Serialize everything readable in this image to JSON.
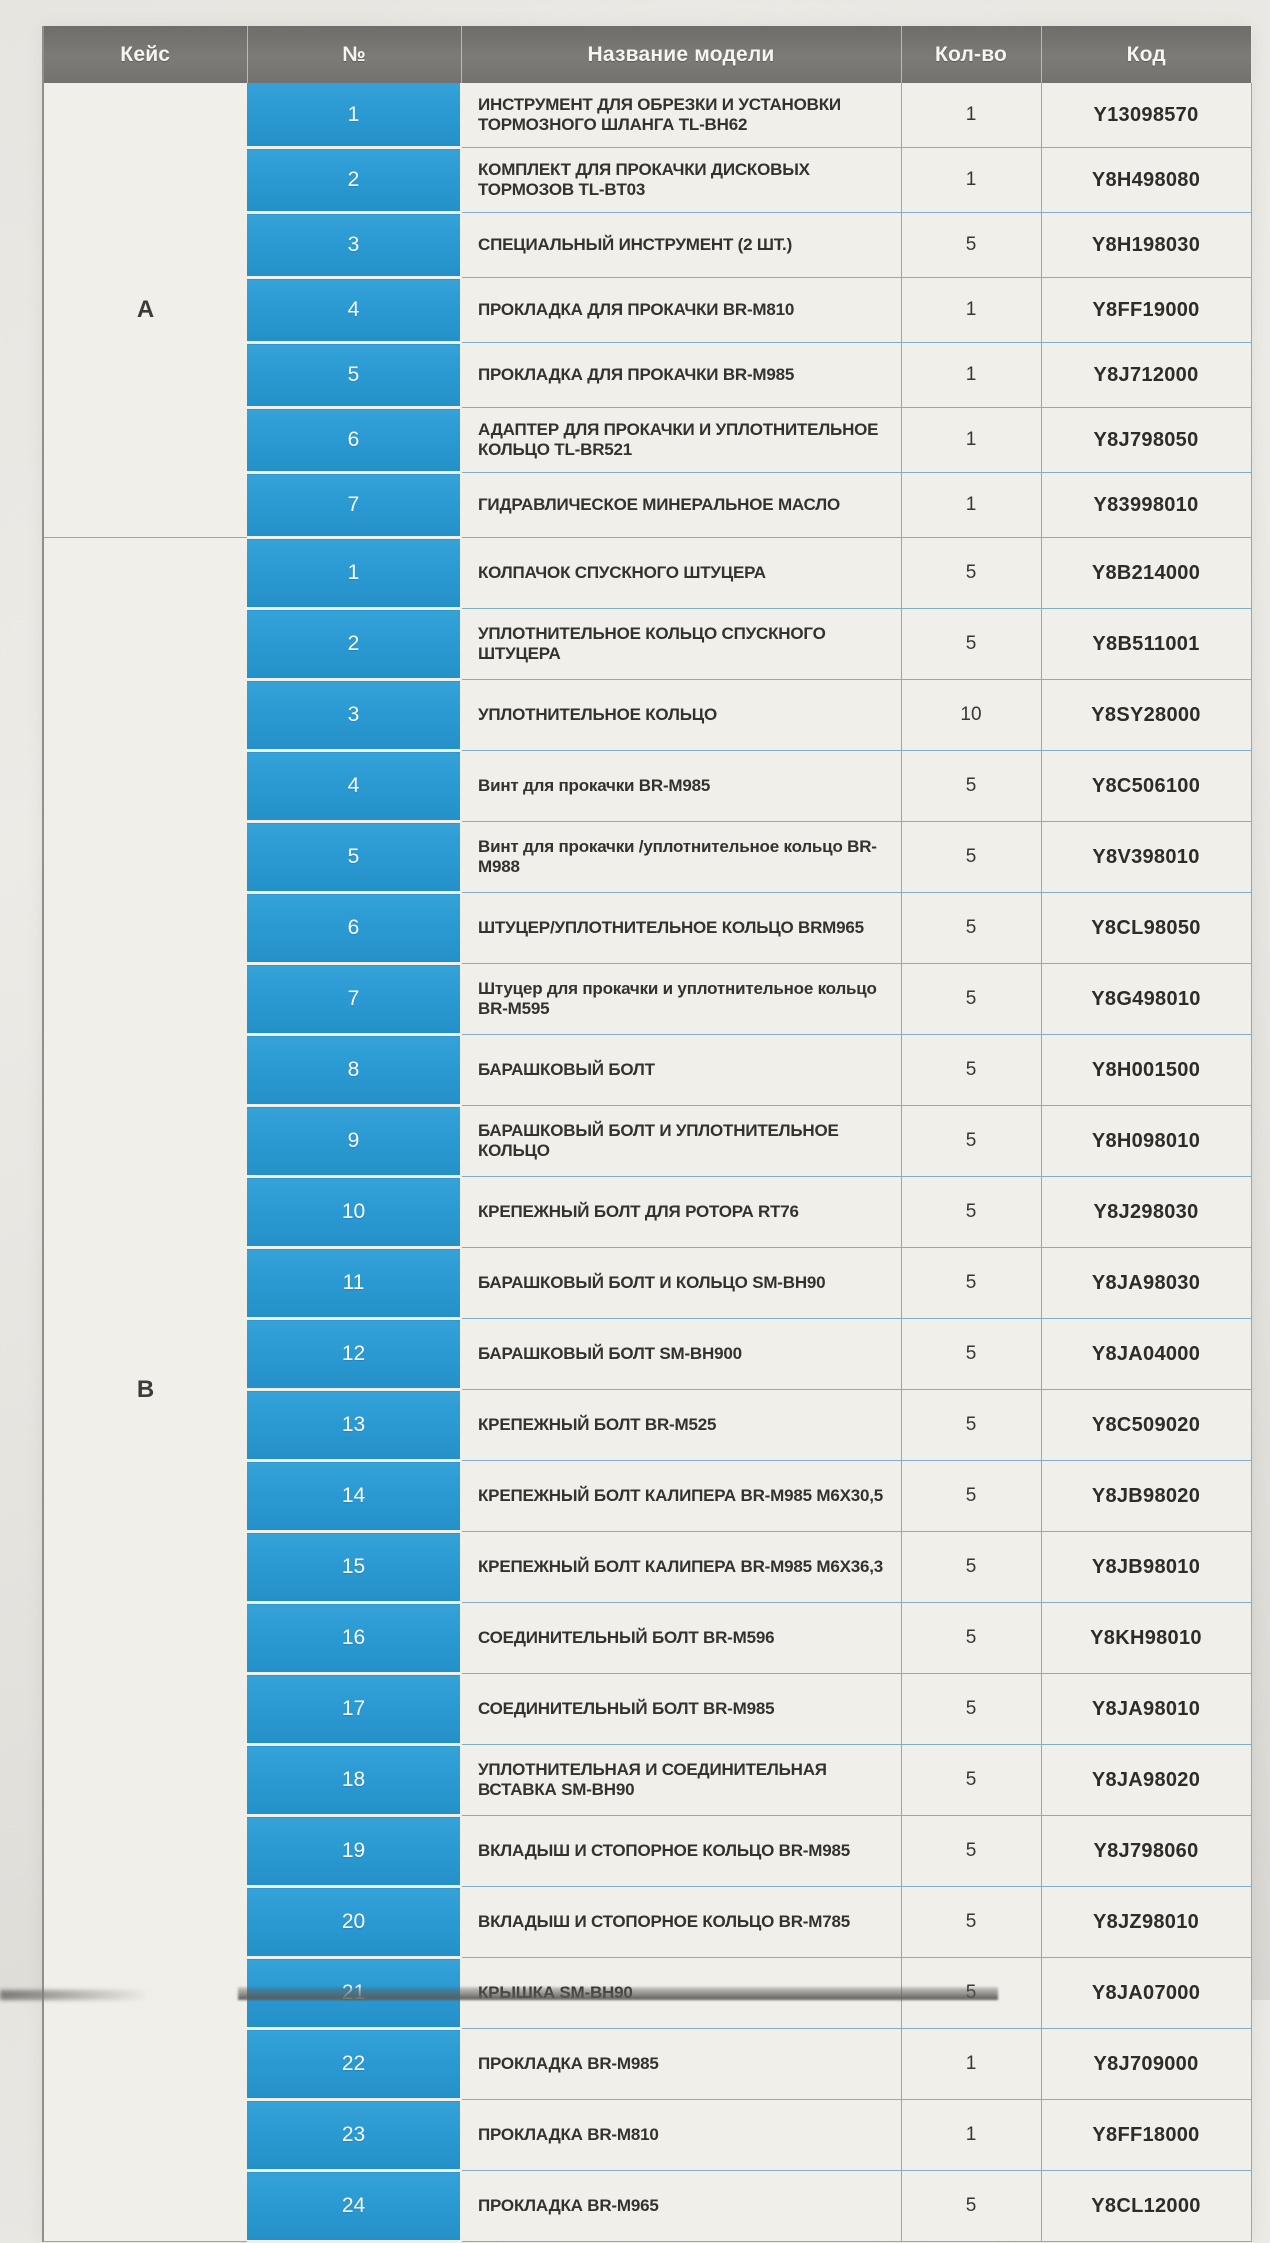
{
  "colors": {
    "accent_blue": "#2b9ad3",
    "header_gray": "#787672",
    "paper": "#f1efe9",
    "grid_blue": "#84abc7",
    "ink": "#34322f"
  },
  "header": {
    "case": "Кейс",
    "num": "№",
    "name": "Название модели",
    "qty": "Кол-во",
    "code": "Код"
  },
  "sections": [
    {
      "case": "A",
      "rows": [
        {
          "num": "1",
          "name": "ИНСТРУМЕНТ ДЛЯ ОБРЕЗКИ И УСТАНОВКИ ТОРМОЗНОГО ШЛАНГА TL-BH62",
          "qty": "1",
          "code": "Y13098570"
        },
        {
          "num": "2",
          "name": "КОМПЛЕКТ ДЛЯ ПРОКАЧКИ ДИСКОВЫХ ТОРМОЗОВ TL-BT03",
          "qty": "1",
          "code": "Y8H498080"
        },
        {
          "num": "3",
          "name": "СПЕЦИАЛЬНЫЙ ИНСТРУМЕНТ (2 ШТ.)",
          "qty": "5",
          "code": "Y8H198030"
        },
        {
          "num": "4",
          "name": "ПРОКЛАДКА ДЛЯ ПРОКАЧКИ BR-M810",
          "qty": "1",
          "code": "Y8FF19000"
        },
        {
          "num": "5",
          "name": "ПРОКЛАДКА ДЛЯ ПРОКАЧКИ BR-M985",
          "qty": "1",
          "code": "Y8J712000"
        },
        {
          "num": "6",
          "name": "АДАПТЕР ДЛЯ ПРОКАЧКИ И УПЛОТНИТЕЛЬНОЕ КОЛЬЦО TL-BR521",
          "qty": "1",
          "code": "Y8J798050"
        },
        {
          "num": "7",
          "name": "ГИДРАВЛИЧЕСКОЕ МИНЕРАЛЬНОЕ МАСЛО",
          "qty": "1",
          "code": "Y83998010"
        }
      ]
    },
    {
      "case": "B",
      "rows": [
        {
          "num": "1",
          "name": "КОЛПАЧОК СПУСКНОГО ШТУЦЕРА",
          "qty": "5",
          "code": "Y8B214000"
        },
        {
          "num": "2",
          "name": "УПЛОТНИТЕЛЬНОЕ КОЛЬЦО СПУСКНОГО ШТУЦЕРА",
          "qty": "5",
          "code": "Y8B511001"
        },
        {
          "num": "3",
          "name": "УПЛОТНИТЕЛЬНОЕ КОЛЬЦО",
          "qty": "10",
          "code": "Y8SY28000"
        },
        {
          "num": "4",
          "name": "Винт для прокачки BR-M985",
          "qty": "5",
          "code": "Y8C506100"
        },
        {
          "num": "5",
          "name": "Винт для прокачки /уплотнительное кольцо BR-M988",
          "qty": "5",
          "code": "Y8V398010"
        },
        {
          "num": "6",
          "name": "ШТУЦЕР/УПЛОТНИТЕЛЬНОЕ КОЛЬЦО BRM965",
          "qty": "5",
          "code": "Y8CL98050"
        },
        {
          "num": "7",
          "name": "Штуцер для прокачки и уплотнительное кольцо BR-M595",
          "qty": "5",
          "code": "Y8G498010"
        },
        {
          "num": "8",
          "name": "БАРАШКОВЫЙ БОЛТ",
          "qty": "5",
          "code": "Y8H001500"
        },
        {
          "num": "9",
          "name": "БАРАШКОВЫЙ БОЛТ И УПЛОТНИТЕЛЬНОЕ КОЛЬЦО",
          "qty": "5",
          "code": "Y8H098010"
        },
        {
          "num": "10",
          "name": "КРЕПЕЖНЫЙ БОЛТ ДЛЯ РОТОРА RT76",
          "qty": "5",
          "code": "Y8J298030"
        },
        {
          "num": "11",
          "name": "БАРАШКОВЫЙ БОЛТ И КОЛЬЦО SM-BH90",
          "qty": "5",
          "code": "Y8JA98030"
        },
        {
          "num": "12",
          "name": "БАРАШКОВЫЙ БОЛТ SM-BH900",
          "qty": "5",
          "code": "Y8JA04000"
        },
        {
          "num": "13",
          "name": "КРЕПЕЖНЫЙ БОЛТ BR-M525",
          "qty": "5",
          "code": "Y8C509020"
        },
        {
          "num": "14",
          "name": "КРЕПЕЖНЫЙ БОЛТ КАЛИПЕРА BR-M985 M6X30,5",
          "qty": "5",
          "code": "Y8JB98020"
        },
        {
          "num": "15",
          "name": "КРЕПЕЖНЫЙ БОЛТ КАЛИПЕРА BR-M985 M6X36,3",
          "qty": "5",
          "code": "Y8JB98010"
        },
        {
          "num": "16",
          "name": "СОЕДИНИТЕЛЬНЫЙ БОЛТ BR-M596",
          "qty": "5",
          "code": "Y8KH98010"
        },
        {
          "num": "17",
          "name": "СОЕДИНИТЕЛЬНЫЙ БОЛТ BR-M985",
          "qty": "5",
          "code": "Y8JA98010"
        },
        {
          "num": "18",
          "name": "УПЛОТНИТЕЛЬНАЯ И СОЕДИНИТЕЛЬНАЯ ВСТАВКА SM-BH90",
          "qty": "5",
          "code": "Y8JA98020"
        },
        {
          "num": "19",
          "name": "ВКЛАДЫШ И СТОПОРНОЕ КОЛЬЦО BR-M985",
          "qty": "5",
          "code": "Y8J798060"
        },
        {
          "num": "20",
          "name": "ВКЛАДЫШ И СТОПОРНОЕ КОЛЬЦО BR-M785",
          "qty": "5",
          "code": "Y8JZ98010"
        },
        {
          "num": "21",
          "name": "КРЫШКА SM-BH90",
          "qty": "5",
          "code": "Y8JA07000"
        },
        {
          "num": "22",
          "name": "ПРОКЛАДКА BR-M985",
          "qty": "1",
          "code": "Y8J709000"
        },
        {
          "num": "23",
          "name": "ПРОКЛАДКА BR-M810",
          "qty": "1",
          "code": "Y8FF18000"
        },
        {
          "num": "24",
          "name": "ПРОКЛАДКА BR-M965",
          "qty": "5",
          "code": "Y8CL12000"
        }
      ]
    }
  ]
}
